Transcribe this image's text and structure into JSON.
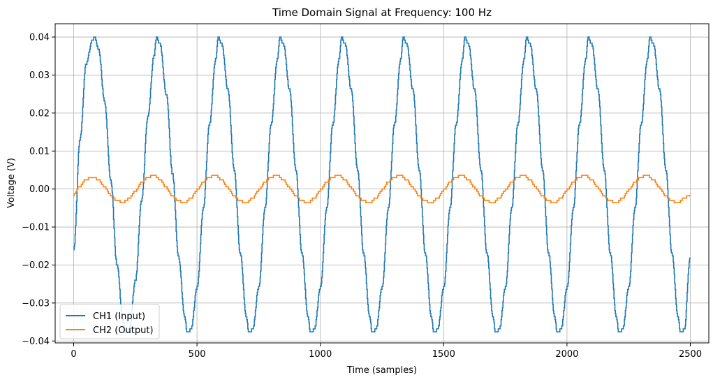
{
  "chart_data": {
    "type": "line",
    "title": "Time Domain Signal at Frequency: 100 Hz",
    "xlabel": "Time (samples)",
    "ylabel": "Voltage (V)",
    "xlim": [
      -75,
      2575
    ],
    "ylim": [
      -0.0405,
      0.0435
    ],
    "xticks": [
      0,
      500,
      1000,
      1500,
      2000,
      2500
    ],
    "yticks": [
      -0.04,
      -0.03,
      -0.02,
      -0.01,
      0.0,
      0.01,
      0.02,
      0.03,
      0.04
    ],
    "ytick_labels": [
      "−0.04",
      "−0.03",
      "−0.02",
      "−0.01",
      "0.00",
      "0.01",
      "0.02",
      "0.03",
      "0.04"
    ],
    "grid": true,
    "legend_position": "lower-left",
    "series": [
      {
        "name": "CH1 (Input)",
        "color": "#1f77b4",
        "period_samples": 250,
        "amplitude": 0.039,
        "sample_count": 2500,
        "x": [
          0,
          25,
          50,
          75,
          85,
          100,
          125,
          150,
          175,
          200,
          210,
          225,
          250,
          275,
          300,
          325,
          335,
          350,
          375,
          400,
          425,
          450,
          460,
          475,
          500,
          525,
          550,
          575,
          585,
          600,
          625,
          650,
          675,
          700,
          710,
          725,
          750,
          775,
          800,
          825,
          835,
          850,
          875,
          900,
          925,
          950,
          960,
          975,
          1000,
          1025,
          1050,
          1075,
          1085,
          1100,
          1125,
          1150,
          1175,
          1200,
          1210,
          1225,
          1250,
          1275,
          1300,
          1325,
          1335,
          1350,
          1375,
          1400,
          1425,
          1450,
          1460,
          1475,
          1500,
          1525,
          1550,
          1575,
          1585,
          1600,
          1625,
          1650,
          1675,
          1700,
          1710,
          1725,
          1750,
          1775,
          1800,
          1825,
          1835,
          1850,
          1875,
          1900,
          1925,
          1950,
          1960,
          1975,
          2000,
          2025,
          2050,
          2075,
          2085,
          2100,
          2125,
          2150,
          2175,
          2200,
          2210,
          2225,
          2250,
          2275,
          2300,
          2325,
          2335,
          2350,
          2375,
          2400,
          2425,
          2450,
          2460,
          2475,
          2499
        ],
        "y": [
          -0.016,
          0.013,
          0.033,
          0.039,
          0.04,
          0.037,
          0.023,
          0.002,
          -0.02,
          -0.035,
          -0.038,
          -0.037,
          -0.024,
          -0.003,
          0.019,
          0.035,
          0.04,
          0.038,
          0.025,
          0.004,
          -0.018,
          -0.034,
          -0.038,
          -0.037,
          -0.026,
          -0.005,
          0.017,
          0.034,
          0.04,
          0.038,
          0.026,
          0.005,
          -0.017,
          -0.034,
          -0.038,
          -0.037,
          -0.026,
          -0.005,
          0.017,
          0.034,
          0.04,
          0.038,
          0.026,
          0.005,
          -0.017,
          -0.034,
          -0.038,
          -0.037,
          -0.026,
          -0.005,
          0.017,
          0.034,
          0.04,
          0.038,
          0.026,
          0.005,
          -0.017,
          -0.034,
          -0.038,
          -0.037,
          -0.026,
          -0.005,
          0.017,
          0.034,
          0.04,
          0.038,
          0.026,
          0.005,
          -0.017,
          -0.034,
          -0.038,
          -0.037,
          -0.026,
          -0.005,
          0.017,
          0.034,
          0.04,
          0.038,
          0.026,
          0.005,
          -0.017,
          -0.034,
          -0.038,
          -0.037,
          -0.026,
          -0.005,
          0.017,
          0.034,
          0.04,
          0.038,
          0.026,
          0.005,
          -0.017,
          -0.034,
          -0.038,
          -0.037,
          -0.026,
          -0.005,
          0.017,
          0.034,
          0.04,
          0.038,
          0.026,
          0.005,
          -0.017,
          -0.034,
          -0.038,
          -0.037,
          -0.026,
          -0.005,
          0.017,
          0.034,
          0.04,
          0.038,
          0.026,
          0.005,
          -0.017,
          -0.034,
          -0.038,
          -0.037,
          -0.018
        ]
      },
      {
        "name": "CH2 (Output)",
        "color": "#ff7f0e",
        "period_samples": 250,
        "amplitude": 0.0035,
        "sample_count": 2500,
        "x": [
          0,
          25,
          50,
          75,
          100,
          125,
          150,
          175,
          200,
          225,
          250,
          275,
          300,
          325,
          350,
          375,
          400,
          425,
          450,
          475,
          500,
          525,
          550,
          575,
          600,
          625,
          650,
          675,
          700,
          725,
          750,
          775,
          800,
          825,
          850,
          875,
          900,
          925,
          950,
          975,
          1000,
          1025,
          1050,
          1075,
          1100,
          1125,
          1150,
          1175,
          1200,
          1225,
          1250,
          1275,
          1300,
          1325,
          1350,
          1375,
          1400,
          1425,
          1450,
          1475,
          1500,
          1525,
          1550,
          1575,
          1600,
          1625,
          1650,
          1675,
          1700,
          1725,
          1750,
          1775,
          1800,
          1825,
          1850,
          1875,
          1900,
          1925,
          1950,
          1975,
          2000,
          2025,
          2050,
          2075,
          2100,
          2125,
          2150,
          2175,
          2200,
          2225,
          2250,
          2275,
          2300,
          2325,
          2350,
          2375,
          2400,
          2425,
          2450,
          2475,
          2499
        ],
        "y": [
          -0.0015,
          0.0008,
          0.0025,
          0.0032,
          0.0025,
          0.0005,
          -0.0016,
          -0.0031,
          -0.0035,
          -0.0025,
          -0.0005,
          0.0017,
          0.0031,
          0.0036,
          0.0025,
          0.0004,
          -0.0018,
          -0.0032,
          -0.0036,
          -0.0024,
          -0.0003,
          0.0018,
          0.0032,
          0.0036,
          0.0024,
          0.0003,
          -0.0018,
          -0.0032,
          -0.0036,
          -0.0024,
          -0.0003,
          0.0018,
          0.0032,
          0.0036,
          0.0024,
          0.0003,
          -0.0018,
          -0.0032,
          -0.0036,
          -0.0024,
          -0.0003,
          0.0018,
          0.0032,
          0.0036,
          0.0024,
          0.0003,
          -0.0018,
          -0.0032,
          -0.0036,
          -0.0024,
          -0.0003,
          0.0018,
          0.0032,
          0.0036,
          0.0024,
          0.0003,
          -0.0018,
          -0.0032,
          -0.0036,
          -0.0024,
          -0.0003,
          0.0018,
          0.0032,
          0.0036,
          0.0024,
          0.0003,
          -0.0018,
          -0.0032,
          -0.0036,
          -0.0024,
          -0.0003,
          0.0018,
          0.0032,
          0.0036,
          0.0024,
          0.0003,
          -0.0018,
          -0.0032,
          -0.0036,
          -0.0024,
          -0.0003,
          0.0018,
          0.0032,
          0.0036,
          0.0024,
          0.0003,
          -0.0018,
          -0.0032,
          -0.0036,
          -0.0024,
          -0.0003,
          0.0018,
          0.0032,
          0.0036,
          0.0024,
          0.0003,
          -0.0018,
          -0.0032,
          -0.0036,
          -0.0024,
          -0.0015
        ]
      }
    ]
  }
}
